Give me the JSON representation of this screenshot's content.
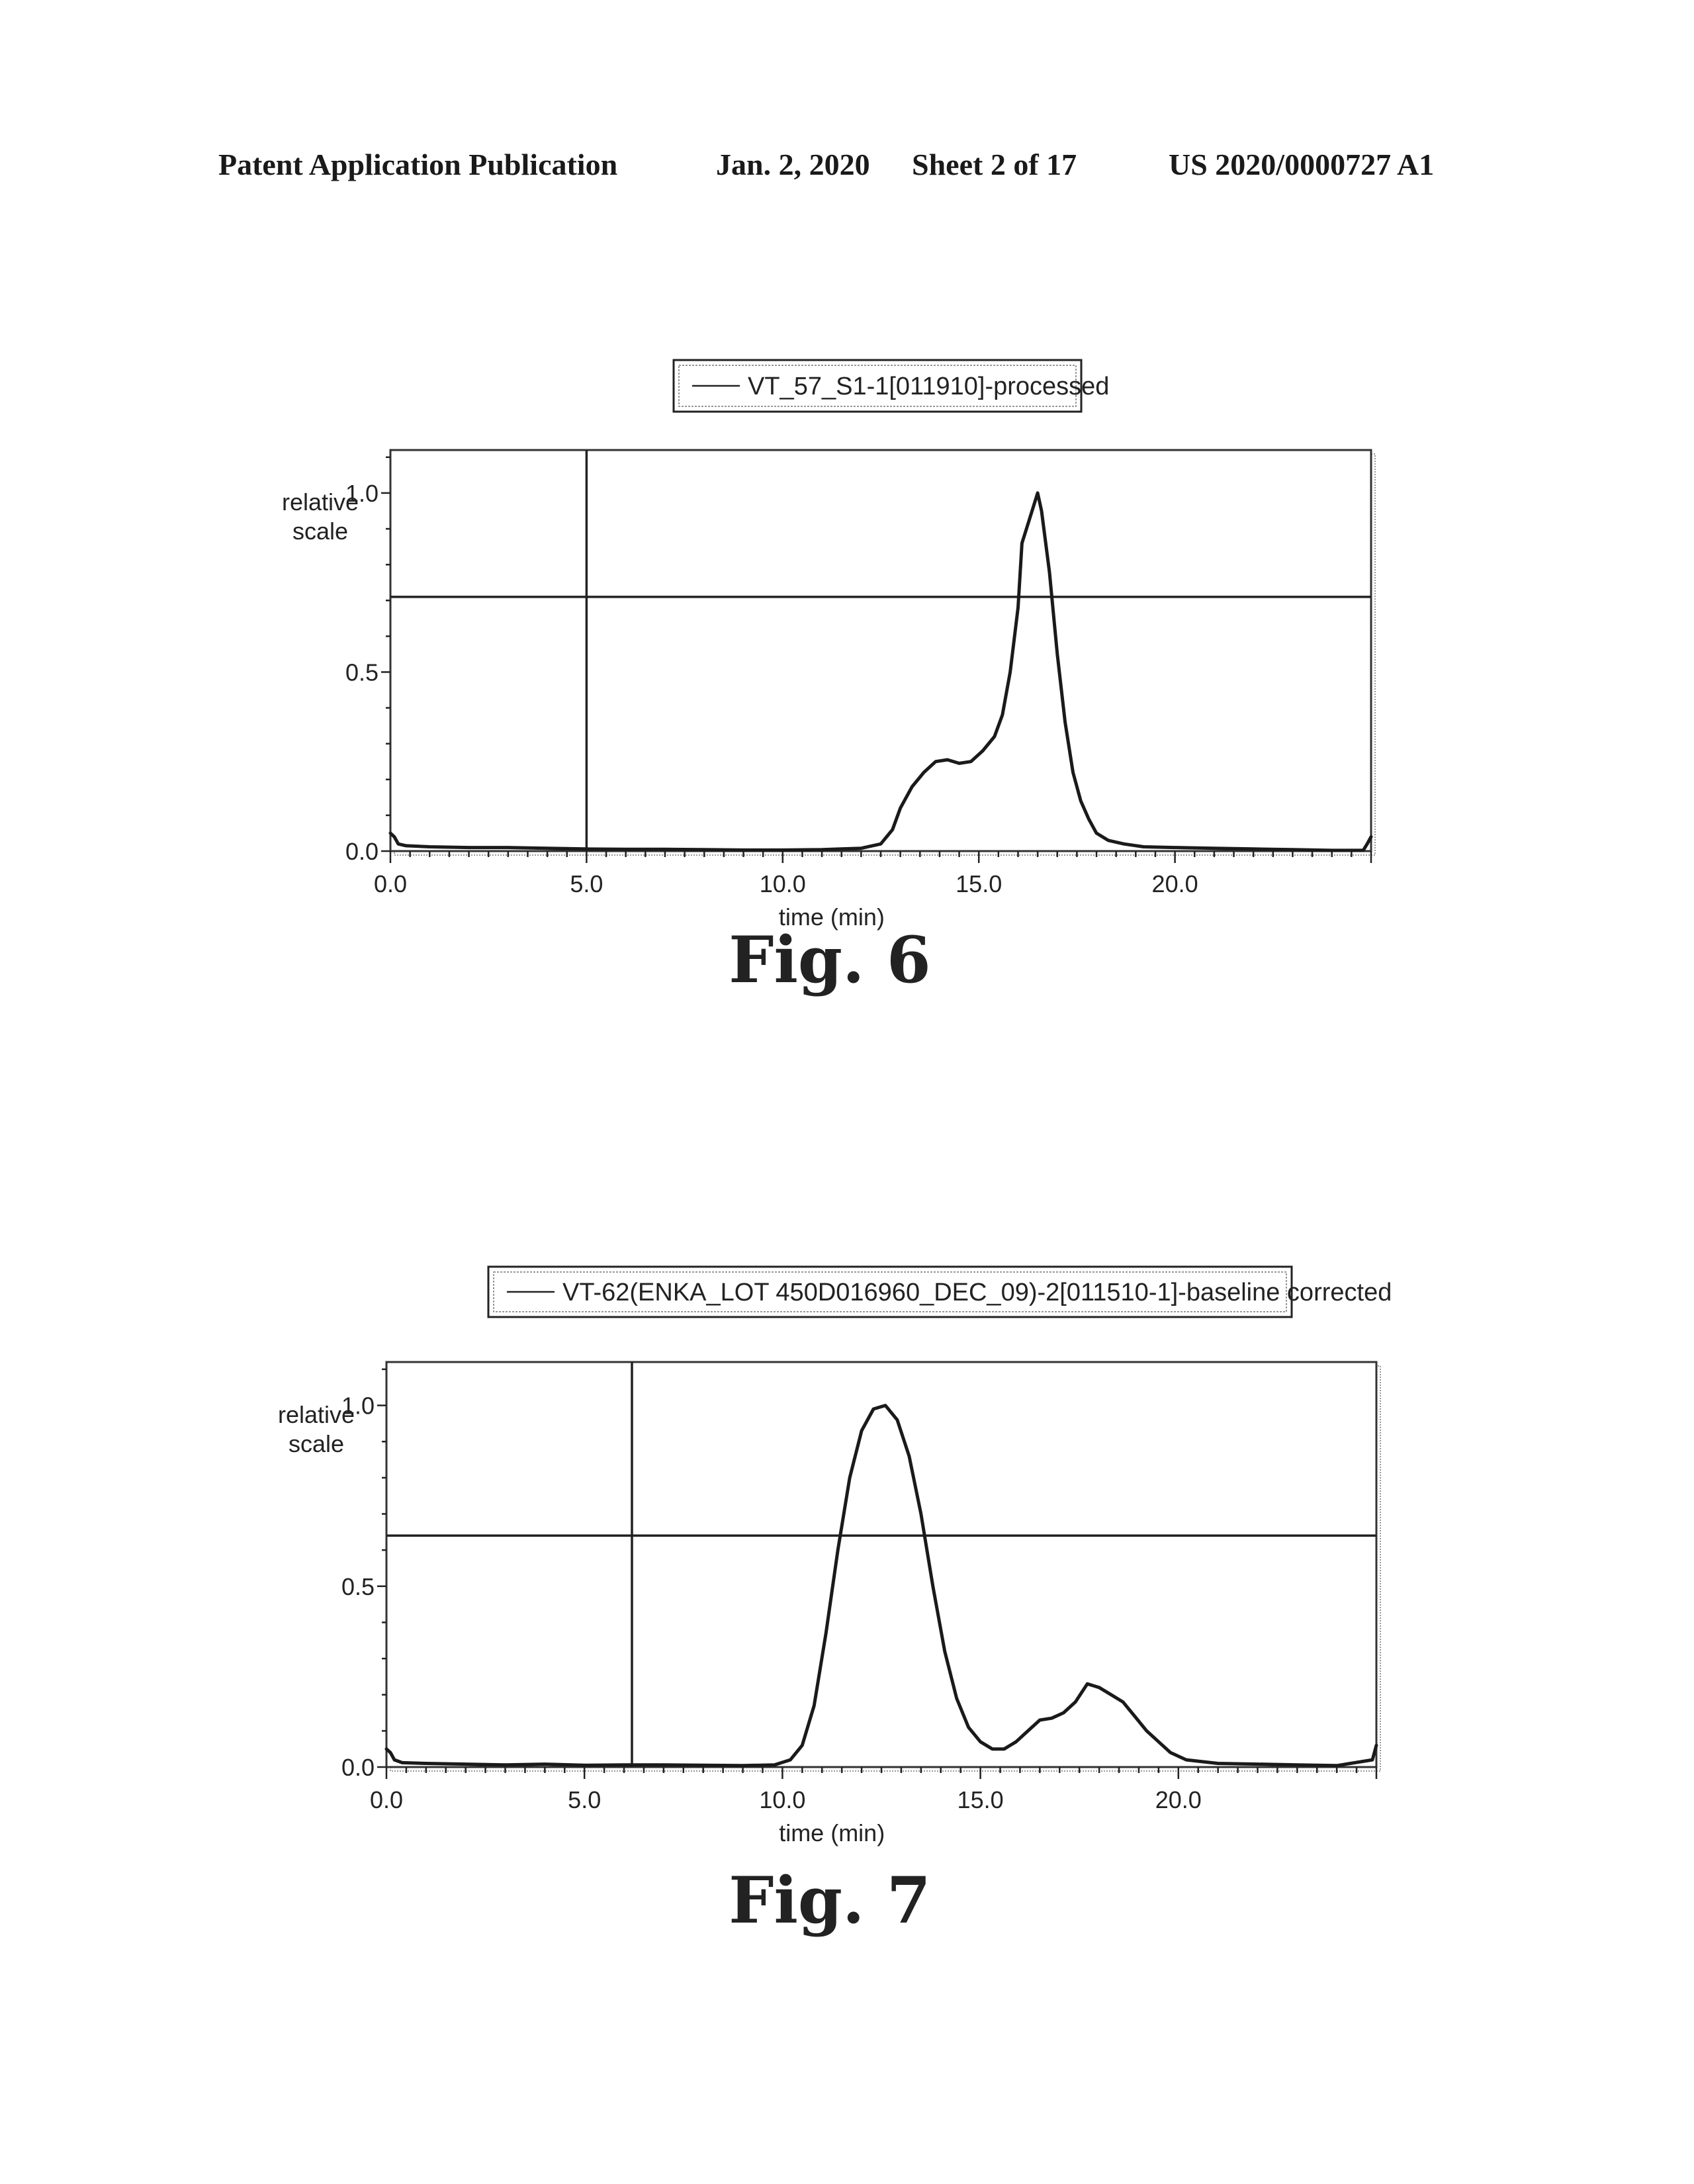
{
  "header": {
    "publication": "Patent Application Publication",
    "date": "Jan. 2, 2020",
    "sheet": "Sheet 2 of 17",
    "number": "US 2020/0000727 A1"
  },
  "chart_data": [
    {
      "type": "line",
      "caption": "Fig. 6",
      "legend": "VT_57_S1-1[011910]-processed",
      "xlabel": "time (min)",
      "ylabel": "relative scale",
      "xlim": [
        0,
        25
      ],
      "ylim": [
        0,
        1.12
      ],
      "xticks": [
        0,
        5,
        10,
        15,
        20
      ],
      "xtick_labels": [
        "0.0",
        "5.0",
        "10.0",
        "15.0",
        "20.0"
      ],
      "yticks": [
        0,
        0.5,
        1.0
      ],
      "ytick_labels": [
        "0.0",
        "0.5",
        "1.0"
      ],
      "cursor_x": 5.0,
      "cursor_y": 0.71,
      "series": [
        {
          "x": [
            0.0,
            0.1,
            0.2,
            0.4,
            1,
            2,
            3,
            4,
            5,
            6,
            7,
            8,
            9,
            10,
            11,
            12,
            12.5,
            12.8,
            13.0,
            13.3,
            13.6,
            13.9,
            14.2,
            14.5,
            14.8,
            15.1,
            15.4,
            15.6,
            15.8,
            16.0,
            16.1,
            16.3,
            16.5,
            16.6,
            16.8,
            17.0,
            17.2,
            17.4,
            17.6,
            17.8,
            18.0,
            18.3,
            18.7,
            19.2,
            20,
            21,
            22,
            23,
            24,
            24.8,
            24.9,
            25.0
          ],
          "y": [
            0.05,
            0.04,
            0.02,
            0.015,
            0.012,
            0.01,
            0.01,
            0.008,
            0.006,
            0.005,
            0.005,
            0.004,
            0.003,
            0.003,
            0.004,
            0.008,
            0.02,
            0.06,
            0.12,
            0.18,
            0.22,
            0.25,
            0.255,
            0.245,
            0.25,
            0.28,
            0.32,
            0.38,
            0.5,
            0.68,
            0.86,
            0.93,
            1.0,
            0.95,
            0.78,
            0.55,
            0.36,
            0.22,
            0.14,
            0.09,
            0.05,
            0.03,
            0.02,
            0.012,
            0.01,
            0.008,
            0.006,
            0.004,
            0.002,
            0.002,
            0.02,
            0.04
          ]
        }
      ]
    },
    {
      "type": "line",
      "caption": "Fig. 7",
      "legend": "VT-62(ENKA_LOT 450D016960_DEC_09)-2[011510-1]-baseline corrected",
      "xlabel": "time (min)",
      "ylabel": "relative scale",
      "xlim": [
        0,
        25
      ],
      "ylim": [
        0,
        1.12
      ],
      "xticks": [
        0,
        5,
        10,
        15,
        20
      ],
      "xtick_labels": [
        "0.0",
        "5.0",
        "10.0",
        "15.0",
        "20.0"
      ],
      "yticks": [
        0,
        0.5,
        1.0
      ],
      "ytick_labels": [
        "0.0",
        "0.5",
        "1.0"
      ],
      "cursor_x": 6.2,
      "cursor_y": 0.64,
      "series": [
        {
          "x": [
            0.0,
            0.1,
            0.2,
            0.4,
            1,
            2,
            3,
            4,
            5,
            6,
            7,
            8,
            9,
            9.8,
            10.2,
            10.5,
            10.8,
            11.1,
            11.4,
            11.7,
            12.0,
            12.3,
            12.6,
            12.9,
            13.2,
            13.5,
            13.8,
            14.1,
            14.4,
            14.7,
            15.0,
            15.3,
            15.6,
            15.9,
            16.2,
            16.5,
            16.8,
            17.1,
            17.4,
            17.7,
            18.0,
            18.3,
            18.6,
            18.9,
            19.2,
            19.5,
            19.8,
            20.2,
            21,
            22,
            23,
            24,
            24.9,
            25.0
          ],
          "y": [
            0.05,
            0.04,
            0.02,
            0.012,
            0.01,
            0.008,
            0.006,
            0.008,
            0.005,
            0.006,
            0.006,
            0.005,
            0.004,
            0.006,
            0.02,
            0.06,
            0.17,
            0.37,
            0.6,
            0.8,
            0.93,
            0.99,
            1.0,
            0.96,
            0.86,
            0.7,
            0.5,
            0.32,
            0.19,
            0.11,
            0.07,
            0.05,
            0.05,
            0.07,
            0.1,
            0.13,
            0.135,
            0.15,
            0.18,
            0.23,
            0.22,
            0.2,
            0.18,
            0.14,
            0.1,
            0.07,
            0.04,
            0.02,
            0.01,
            0.008,
            0.006,
            0.004,
            0.02,
            0.06
          ]
        }
      ]
    }
  ]
}
